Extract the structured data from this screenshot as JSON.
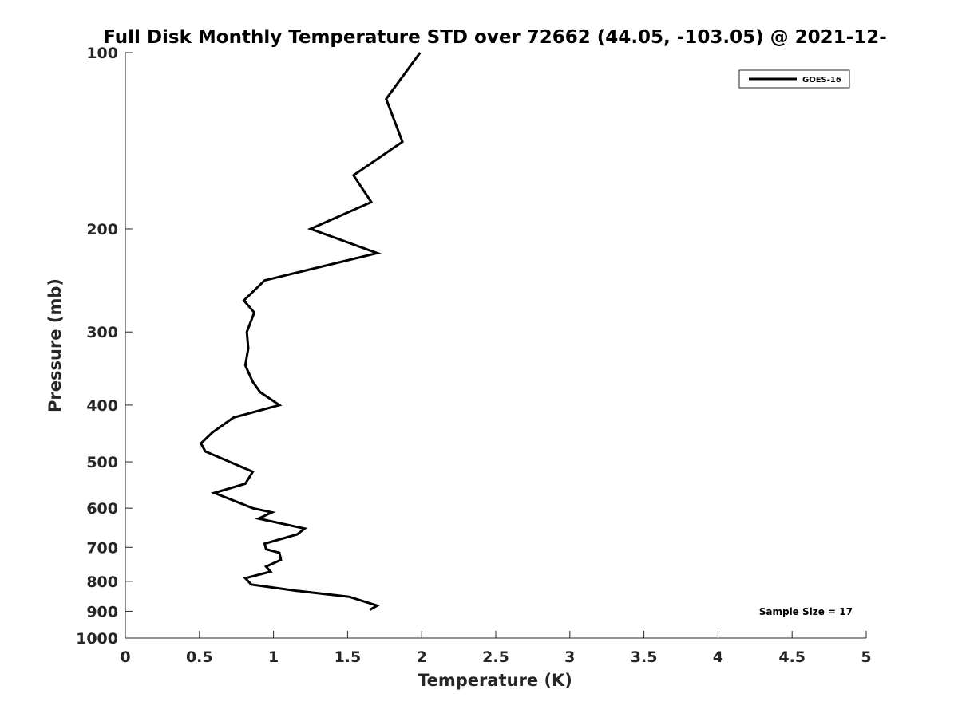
{
  "chart_data": {
    "type": "line",
    "title": "Full Disk Monthly Temperature STD over 72662 (44.05, -103.05) @ 2021-12-",
    "xlabel": "Temperature (K)",
    "ylabel": "Pressure (mb)",
    "xlim": [
      0,
      5
    ],
    "ylim": [
      1000,
      100
    ],
    "y_scale": "log",
    "y_reversed": true,
    "x_ticks": [
      "0",
      "0.5",
      "1",
      "1.5",
      "2",
      "2.5",
      "3",
      "3.5",
      "4",
      "4.5",
      "5"
    ],
    "x_tick_values": [
      0,
      0.5,
      1,
      1.5,
      2,
      2.5,
      3,
      3.5,
      4,
      4.5,
      5
    ],
    "y_ticks": [
      "100",
      "200",
      "300",
      "400",
      "500",
      "600",
      "700",
      "800",
      "900",
      "1000"
    ],
    "y_tick_values": [
      100,
      200,
      300,
      400,
      500,
      600,
      700,
      800,
      900,
      1000
    ],
    "grid": false,
    "legend": {
      "position": "top-right",
      "entries": [
        "GOES-16"
      ]
    },
    "annotation": "Sample Size = 17",
    "series": [
      {
        "name": "GOES-16",
        "color": "#000000",
        "points": [
          [
            1.99,
            100
          ],
          [
            1.76,
            120
          ],
          [
            1.87,
            142
          ],
          [
            1.54,
            162
          ],
          [
            1.66,
            180
          ],
          [
            1.25,
            200
          ],
          [
            1.7,
            220
          ],
          [
            0.94,
            245
          ],
          [
            0.8,
            265
          ],
          [
            0.87,
            278
          ],
          [
            0.82,
            300
          ],
          [
            0.83,
            320
          ],
          [
            0.81,
            342
          ],
          [
            0.86,
            365
          ],
          [
            0.91,
            380
          ],
          [
            1.04,
            400
          ],
          [
            0.73,
            420
          ],
          [
            0.59,
            445
          ],
          [
            0.51,
            465
          ],
          [
            0.54,
            480
          ],
          [
            0.86,
            520
          ],
          [
            0.81,
            545
          ],
          [
            0.6,
            565
          ],
          [
            0.86,
            600
          ],
          [
            0.99,
            610
          ],
          [
            0.9,
            625
          ],
          [
            1.21,
            650
          ],
          [
            1.16,
            665
          ],
          [
            0.94,
            690
          ],
          [
            0.95,
            705
          ],
          [
            1.04,
            715
          ],
          [
            1.05,
            735
          ],
          [
            0.95,
            755
          ],
          [
            0.98,
            770
          ],
          [
            0.81,
            790
          ],
          [
            0.85,
            810
          ],
          [
            1.15,
            830
          ],
          [
            1.51,
            850
          ],
          [
            1.7,
            880
          ],
          [
            1.65,
            895
          ]
        ]
      }
    ]
  }
}
